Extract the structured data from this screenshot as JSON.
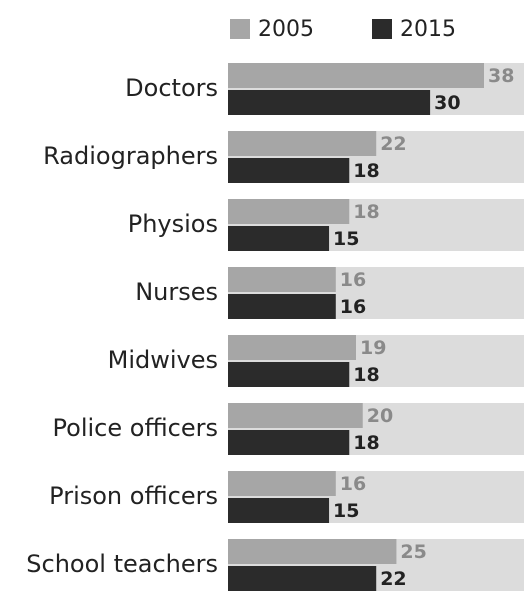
{
  "chart_data": {
    "type": "bar",
    "orientation": "horizontal",
    "categories": [
      "Doctors",
      "Radiographers",
      "Physios",
      "Nurses",
      "Midwives",
      "Police officers",
      "Prison officers",
      "School teachers"
    ],
    "series": [
      {
        "name": "2005",
        "color": "#a6a6a6",
        "values": [
          38,
          22,
          18,
          16,
          19,
          20,
          16,
          25
        ]
      },
      {
        "name": "2015",
        "color": "#2b2b2b",
        "values": [
          30,
          18,
          15,
          16,
          18,
          18,
          15,
          22
        ]
      }
    ],
    "track_color": "#dcdcdc"
  }
}
